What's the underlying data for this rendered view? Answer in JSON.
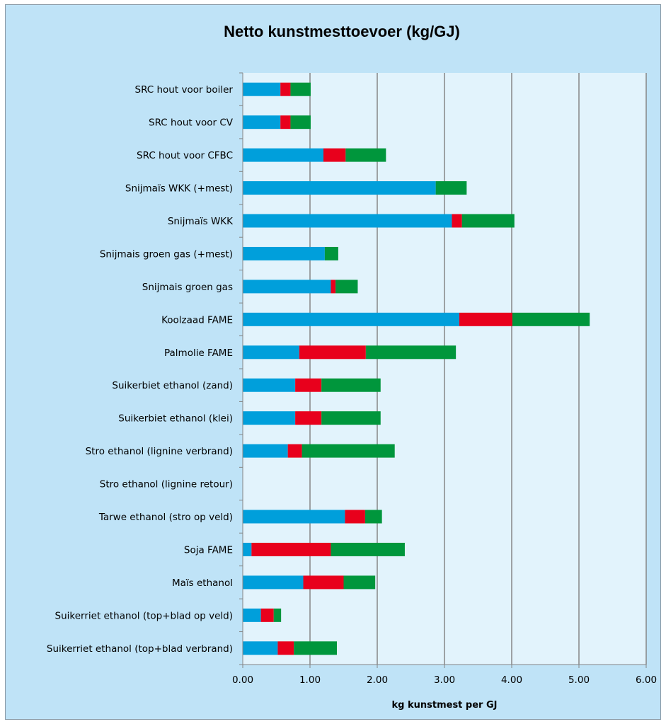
{
  "chart_data": {
    "type": "bar",
    "orientation": "horizontal",
    "stacked": true,
    "title": "Netto kunstmesttoevoer (kg/GJ)",
    "xlabel": "kg kunstmest per GJ",
    "ylabel": "",
    "xlim": [
      0,
      6
    ],
    "xticks": [
      "0.00",
      "1.00",
      "2.00",
      "3.00",
      "4.00",
      "5.00",
      "6.00"
    ],
    "grid": "vertical",
    "legend": "none",
    "categories": [
      "SRC hout voor boiler",
      "SRC hout voor CV",
      "SRC hout voor CFBC",
      "Snijmaïs WKK (+mest)",
      "Snijmaïs WKK",
      "Snijmais groen gas (+mest)",
      "Snijmais groen gas",
      "Koolzaad FAME",
      "Palmolie FAME",
      "Suikerbiet ethanol (zand)",
      "Suikerbiet ethanol (klei)",
      "Stro ethanol (lignine verbrand)",
      "Stro ethanol (lignine retour)",
      "Tarwe ethanol (stro op veld)",
      "Soja FAME",
      "Maïs ethanol",
      "Suikerriet ethanol (top+blad op veld)",
      "Suikerriet ethanol (top+blad verbrand)"
    ],
    "series": [
      {
        "color": "#009fdb",
        "values": [
          0.56,
          0.56,
          1.2,
          2.87,
          3.11,
          1.22,
          1.31,
          3.22,
          0.84,
          0.78,
          0.78,
          0.67,
          0,
          1.52,
          0.13,
          0.9,
          0.27,
          0.52
        ]
      },
      {
        "color": "#e8001c",
        "values": [
          0.15,
          0.15,
          0.33,
          0,
          0.15,
          0,
          0.07,
          0.79,
          0.99,
          0.39,
          0.39,
          0.21,
          0,
          0.3,
          1.18,
          0.6,
          0.19,
          0.24
        ]
      },
      {
        "color": "#00963c",
        "values": [
          0.3,
          0.3,
          0.6,
          0.46,
          0.78,
          0.2,
          0.33,
          1.15,
          1.34,
          0.88,
          0.88,
          1.38,
          0,
          0.25,
          1.1,
          0.47,
          0.11,
          0.64
        ]
      }
    ]
  }
}
